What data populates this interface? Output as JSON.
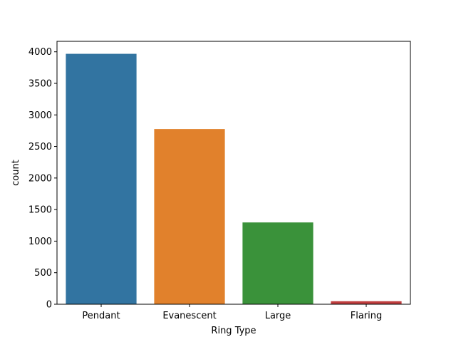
{
  "chart_data": {
    "type": "bar",
    "xlabel": "Ring Type",
    "ylabel": "count",
    "categories": [
      "Pendant",
      "Evanescent",
      "Large",
      "Flaring"
    ],
    "values": [
      3968,
      2776,
      1296,
      48
    ],
    "colors": [
      "#3274a1",
      "#e1812c",
      "#3a923a",
      "#c03d3e"
    ],
    "ylim": [
      0,
      4166
    ],
    "yticks": [
      0,
      500,
      1000,
      1500,
      2000,
      2500,
      3000,
      3500,
      4000
    ],
    "grid": false,
    "legend": "none"
  }
}
